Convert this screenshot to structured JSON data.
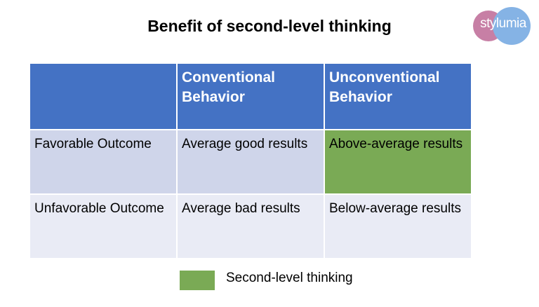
{
  "title": "Benefit of second-level thinking",
  "logo": {
    "text": "stylumia"
  },
  "table": {
    "headers": [
      "",
      "Conventional Behavior",
      "Unconventional Behavior"
    ],
    "rows": [
      [
        "Favorable Outcome",
        "Average good results",
        "Above-average results"
      ],
      [
        "Unfavorable Outcome",
        "Average bad results",
        "Below-average results"
      ]
    ]
  },
  "legend": {
    "label": "Second-level thinking",
    "color": "#7aaa55"
  }
}
